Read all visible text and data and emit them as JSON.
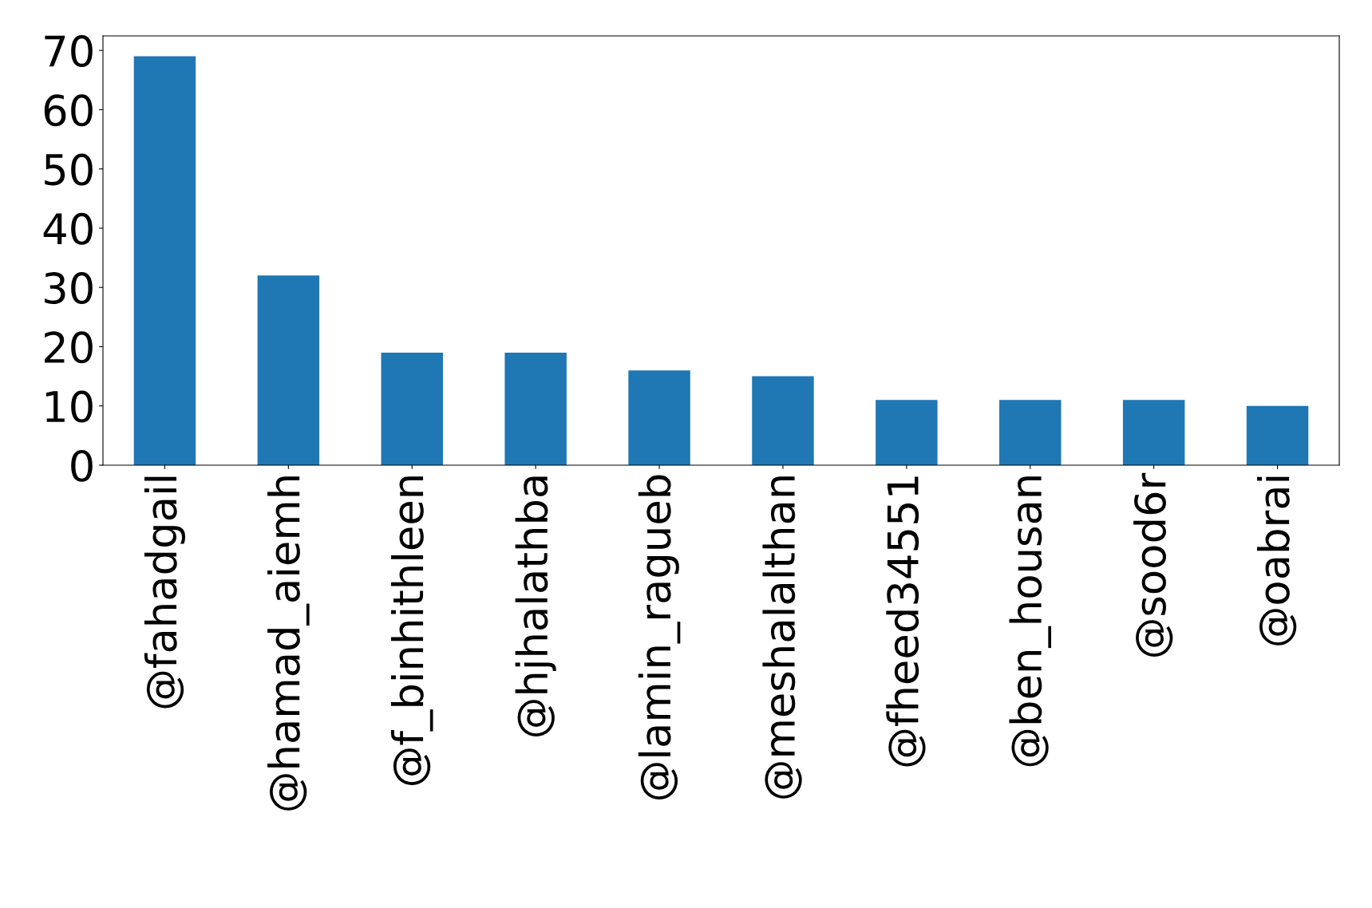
{
  "chart_data": {
    "type": "bar",
    "categories": [
      "@fahadgail",
      "@hamad_aiemh",
      "@f_binhithleen",
      "@hjhalathba",
      "@lamin_ragueb",
      "@meshalalthan",
      "@fheed34551",
      "@ben_housan",
      "@sood6r",
      "@oabrai"
    ],
    "values": [
      69,
      32,
      19,
      19,
      16,
      15,
      11,
      11,
      11,
      10
    ],
    "color": "#1f77b4",
    "ylim": [
      0,
      72.45
    ],
    "yticks": [
      0,
      10,
      20,
      30,
      40,
      50,
      60,
      70
    ],
    "grid": false,
    "legend": false
  }
}
